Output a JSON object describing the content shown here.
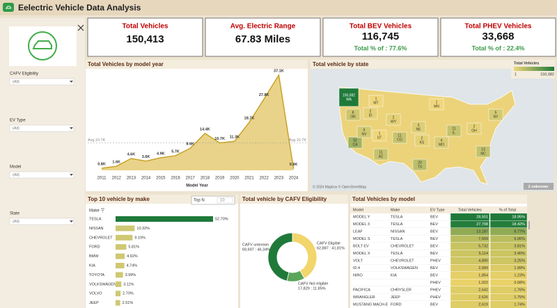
{
  "header": {
    "title": "Eelectric Vehicle Data Analysis"
  },
  "filters": [
    {
      "label": "CAFV Eligibility",
      "value": "(All)"
    },
    {
      "label": "EV Type",
      "value": "(All)"
    },
    {
      "label": "Model",
      "value": "(All)"
    },
    {
      "label": "State",
      "value": "(All)"
    }
  ],
  "kpis": [
    {
      "title": "Total Vehicles",
      "value": "150,413"
    },
    {
      "title": "Avg. Electric Range",
      "value": "67.83 Miles"
    },
    {
      "title": "Total BEV Vehicles",
      "value": "116,745",
      "sub": "Total % of : 77.6%"
    },
    {
      "title": "Total PHEV Vehicles",
      "value": "33,668",
      "sub": "Total % of : 22.4%"
    }
  ],
  "chart_data": [
    {
      "type": "area",
      "title": "Total Vehicles by model year",
      "x_label": "Model Year",
      "categories": [
        "2011",
        "2012",
        "2013",
        "2014",
        "2015",
        "2016",
        "2017",
        "2018",
        "2019",
        "2020",
        "2021",
        "2022",
        "2023",
        "2024"
      ],
      "values": [
        0.8,
        1.6,
        4.6,
        3.6,
        4.9,
        5.7,
        8.6,
        14.4,
        10.7,
        11.3,
        18.7,
        27.8,
        37.1,
        0.6
      ],
      "value_labels": [
        "0.8K",
        "1.6K",
        "4.6K",
        "3.6K",
        "4.9K",
        "5.7K",
        "8.6K",
        "14.4K",
        "10.7K",
        "11.3K",
        "18.7K",
        "27.8K",
        "37.1K",
        "0.6K"
      ],
      "reference_line": {
        "value": 10.7,
        "label": "Avg.10.7K"
      },
      "color": "#c9a227",
      "fill": "#e9d38a"
    },
    {
      "type": "map",
      "title": "Total vehicle by state",
      "legend_title": "Total Vehicles",
      "legend_ticks": [
        1,
        {
          "value": 150082,
          "label": "150,082"
        }
      ],
      "categories": [
        "WA",
        "MT",
        "OR",
        "ID",
        "WY",
        "CA",
        "NV",
        "UT",
        "CO",
        "AZ",
        "NE",
        "KS",
        "TX",
        "MN",
        "MO",
        "IL",
        "OH",
        "NC",
        "NY"
      ],
      "values": [
        150082,
        1,
        8,
        2,
        2,
        92,
        6,
        1,
        11,
        11,
        3,
        2,
        20,
        1,
        4,
        11,
        2,
        13,
        5
      ],
      "value_labels": [
        "150,082",
        "1",
        "8",
        "2",
        "2",
        "92",
        "6",
        "1",
        "11",
        "11",
        "3",
        "2",
        "20",
        "1",
        "4",
        "11",
        "2",
        "13",
        "5"
      ],
      "colors": [
        "#f0d67a",
        "#1f7a3a"
      ],
      "footnote": "© 2024 Mapbox © OpenStreetMap",
      "unknown_label": "2 unknown"
    },
    {
      "type": "bar",
      "orientation": "horizontal",
      "title": "Top 10 vehicle by make",
      "axis_label": "Make",
      "control": {
        "label": "Top N",
        "value": 10
      },
      "categories": [
        "TESLA",
        "NISSAN",
        "CHEVROLET",
        "FORD",
        "BMW",
        "KIA",
        "TOYOTA",
        "VOLKSWAGEN",
        "VOLVO",
        "JEEP"
      ],
      "values": [
        52.7,
        10.32,
        9.19,
        5.81,
        4.92,
        4.74,
        3.99,
        3.11,
        2.7,
        2.51
      ],
      "value_labels": [
        "52.70%",
        "10.32%",
        "9.19%",
        "5.81%",
        "4.92%",
        "4.74%",
        "3.99%",
        "3.11%",
        "2.70%",
        "2.51%"
      ],
      "colors": [
        "#1f7a3a",
        "#cfc873"
      ]
    },
    {
      "type": "donut",
      "title": "Total vehicle by CAFV Eligibility",
      "categories": [
        "CAFV Eligible",
        "CAFV Not eligible",
        "CAFV unknown"
      ],
      "values": [
        62887,
        17829,
        69697
      ],
      "value_labels": [
        "62,887 : 41.81%",
        "17,829 : 11.85%",
        "69,697 : 46.34%"
      ],
      "colors": [
        "#f2d56b",
        "#5aa55a",
        "#1f7a3a"
      ]
    }
  ],
  "table": {
    "title": "Total Vehicles by model",
    "columns": [
      "Model",
      "Make",
      "EV Type",
      "Total Vehicles",
      "% of Total"
    ],
    "rows": [
      [
        "MODEL Y",
        "TESLA",
        "BEV",
        "28,501",
        "18.95%"
      ],
      [
        "MODEL 3",
        "TESLA",
        "BEV",
        "27,708",
        "18.42%"
      ],
      [
        "LEAF",
        "NISSAN",
        "BEV",
        "13,187",
        "8.77%"
      ],
      [
        "MODEL S",
        "TESLA",
        "BEV",
        "7,609",
        "5.06%"
      ],
      [
        "BOLT EV",
        "CHEVROLET",
        "BEV",
        "5,732",
        "3.81%"
      ],
      [
        "MODEL X",
        "TESLA",
        "BEV",
        "5,114",
        "3.40%"
      ],
      [
        "VOLT",
        "CHEVROLET",
        "PHEV",
        "4,890",
        "3.25%"
      ],
      [
        "ID.4",
        "VOLKSWAGEN",
        "BEV",
        "2,999",
        "1.99%"
      ],
      [
        "NIRO",
        "KIA",
        "BEV",
        "1,854",
        "1.23%"
      ],
      [
        null,
        null,
        "PHEV",
        "1,022",
        "0.68%"
      ],
      [
        "PACIFICA",
        "CHRYSLER",
        "PHEV",
        "2,642",
        "1.76%"
      ],
      [
        "WRANGLER",
        "JEEP",
        "PHEV",
        "2,626",
        "1.75%"
      ],
      [
        "MUSTANG MACH-E",
        "FORD",
        "BEV",
        "2,619",
        "1.74%"
      ]
    ]
  }
}
